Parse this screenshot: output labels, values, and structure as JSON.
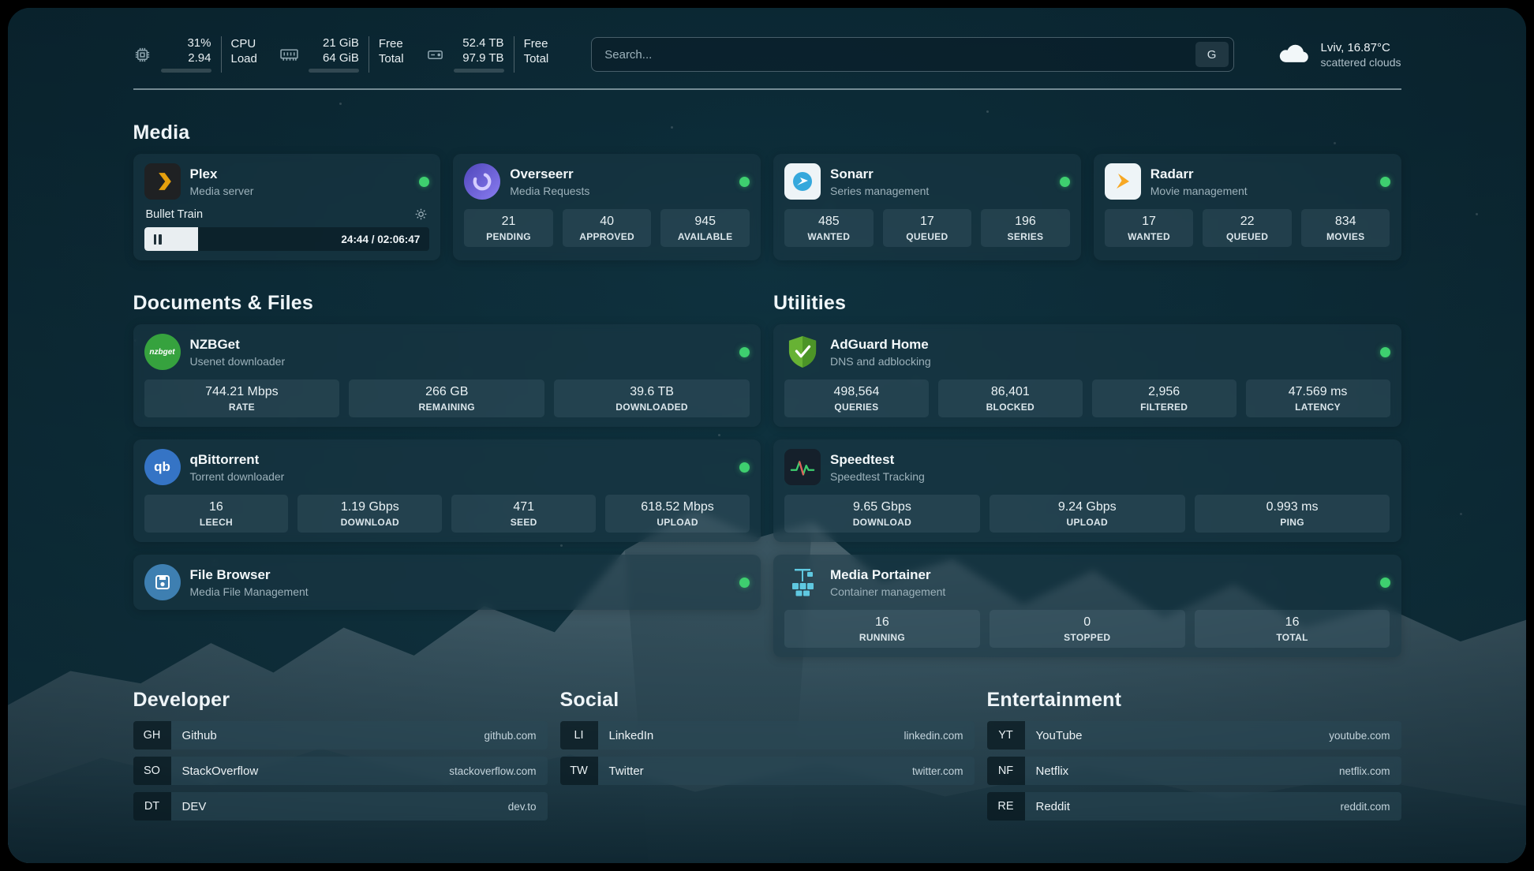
{
  "topbar": {
    "cpu": {
      "value_top": "31%",
      "value_bottom": "2.94",
      "label_top": "CPU",
      "label_bottom": "Load",
      "bar_percent": 31,
      "bar_color": "#e0483e"
    },
    "memory": {
      "value_top": "21 GiB",
      "value_bottom": "64 GiB",
      "label_top": "Free",
      "label_bottom": "Total",
      "bar_percent": 34
    },
    "disk": {
      "value_top": "52.4 TB",
      "value_bottom": "97.9 TB",
      "label_top": "Free",
      "label_bottom": "Total",
      "bar_percent": 53
    },
    "search": {
      "placeholder": "Search...",
      "provider_label": "G"
    },
    "weather": {
      "location": "Lviv, 16.87°C",
      "condition": "scattered clouds"
    }
  },
  "colors": {
    "status_online": "#3ecf6f",
    "cpu_bar": "#e0483e",
    "progress_fill": "#e9eef1",
    "card_bg": "rgba(27,57,69,0.55)"
  },
  "sections": {
    "media": {
      "title": "Media",
      "cards": [
        {
          "name": "Plex",
          "subtitle": "Media server",
          "nowplaying": {
            "title": "Bullet Train",
            "time": "24:44 / 02:06:47",
            "progress_percent": 19
          }
        },
        {
          "name": "Overseerr",
          "subtitle": "Media Requests",
          "stats": [
            {
              "value": "21",
              "label": "PENDING"
            },
            {
              "value": "40",
              "label": "APPROVED"
            },
            {
              "value": "945",
              "label": "AVAILABLE"
            }
          ]
        },
        {
          "name": "Sonarr",
          "subtitle": "Series management",
          "stats": [
            {
              "value": "485",
              "label": "WANTED"
            },
            {
              "value": "17",
              "label": "QUEUED"
            },
            {
              "value": "196",
              "label": "SERIES"
            }
          ]
        },
        {
          "name": "Radarr",
          "subtitle": "Movie management",
          "stats": [
            {
              "value": "17",
              "label": "WANTED"
            },
            {
              "value": "22",
              "label": "QUEUED"
            },
            {
              "value": "834",
              "label": "MOVIES"
            }
          ]
        }
      ]
    },
    "documents": {
      "title": "Documents & Files",
      "cards": [
        {
          "name": "NZBGet",
          "subtitle": "Usenet downloader",
          "icon_text": "nzbget",
          "stats": [
            {
              "value": "744.21 Mbps",
              "label": "RATE"
            },
            {
              "value": "266 GB",
              "label": "REMAINING"
            },
            {
              "value": "39.6 TB",
              "label": "DOWNLOADED"
            }
          ]
        },
        {
          "name": "qBittorrent",
          "subtitle": "Torrent downloader",
          "icon_text": "qb",
          "stats": [
            {
              "value": "16",
              "label": "LEECH"
            },
            {
              "value": "1.19 Gbps",
              "label": "DOWNLOAD"
            },
            {
              "value": "471",
              "label": "SEED"
            },
            {
              "value": "618.52 Mbps",
              "label": "UPLOAD"
            }
          ]
        },
        {
          "name": "File Browser",
          "subtitle": "Media File Management",
          "stats": []
        }
      ]
    },
    "utilities": {
      "title": "Utilities",
      "cards": [
        {
          "name": "AdGuard Home",
          "subtitle": "DNS and adblocking",
          "stats": [
            {
              "value": "498,564",
              "label": "QUERIES"
            },
            {
              "value": "86,401",
              "label": "BLOCKED"
            },
            {
              "value": "2,956",
              "label": "FILTERED"
            },
            {
              "value": "47.569 ms",
              "label": "LATENCY"
            }
          ]
        },
        {
          "name": "Speedtest",
          "subtitle": "Speedtest Tracking",
          "stats": [
            {
              "value": "9.65 Gbps",
              "label": "DOWNLOAD"
            },
            {
              "value": "9.24 Gbps",
              "label": "UPLOAD"
            },
            {
              "value": "0.993 ms",
              "label": "PING"
            }
          ]
        },
        {
          "name": "Media Portainer",
          "subtitle": "Container management",
          "stats": [
            {
              "value": "16",
              "label": "RUNNING"
            },
            {
              "value": "0",
              "label": "STOPPED"
            },
            {
              "value": "16",
              "label": "TOTAL"
            }
          ]
        }
      ]
    },
    "developer": {
      "title": "Developer",
      "links": [
        {
          "abbr": "GH",
          "name": "Github",
          "url": "github.com"
        },
        {
          "abbr": "SO",
          "name": "StackOverflow",
          "url": "stackoverflow.com"
        },
        {
          "abbr": "DT",
          "name": "DEV",
          "url": "dev.to"
        }
      ]
    },
    "social": {
      "title": "Social",
      "links": [
        {
          "abbr": "LI",
          "name": "LinkedIn",
          "url": "linkedin.com"
        },
        {
          "abbr": "TW",
          "name": "Twitter",
          "url": "twitter.com"
        }
      ]
    },
    "entertainment": {
      "title": "Entertainment",
      "links": [
        {
          "abbr": "YT",
          "name": "YouTube",
          "url": "youtube.com"
        },
        {
          "abbr": "NF",
          "name": "Netflix",
          "url": "netflix.com"
        },
        {
          "abbr": "RE",
          "name": "Reddit",
          "url": "reddit.com"
        }
      ]
    }
  }
}
